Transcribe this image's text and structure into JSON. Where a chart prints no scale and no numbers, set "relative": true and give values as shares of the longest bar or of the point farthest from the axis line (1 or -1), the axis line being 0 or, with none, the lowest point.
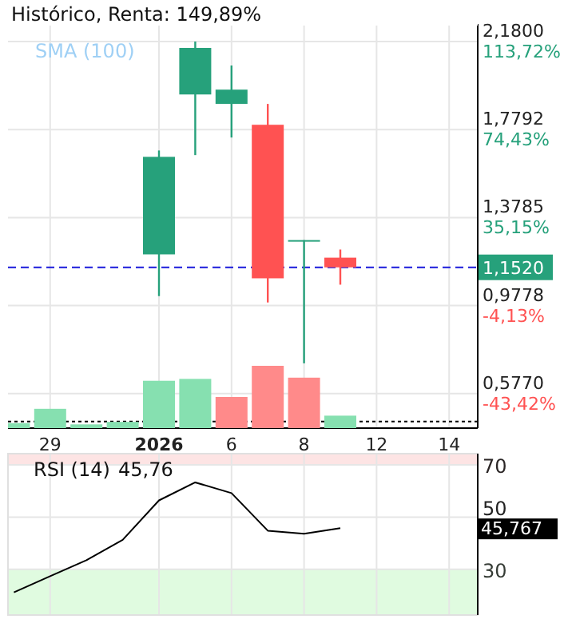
{
  "chart_data": [
    {
      "type": "candlestick",
      "title": "Histórico, Renta: 149,89%",
      "categories": [
        null,
        "29",
        null,
        null,
        "2026",
        null,
        "6",
        null,
        "8",
        null,
        "12",
        null,
        "14"
      ],
      "ohlc": [
        null,
        null,
        null,
        null,
        [
          1.211,
          1.684,
          1.021,
          1.655
        ],
        [
          1.939,
          2.18,
          1.663,
          2.151
        ],
        [
          1.896,
          2.071,
          1.743,
          1.961
        ],
        [
          1.801,
          1.896,
          0.992,
          1.102
        ],
        [
          1.276,
          1.276,
          0.715,
          1.276
        ],
        [
          1.196,
          1.233,
          1.073,
          1.152
        ],
        null,
        null,
        null
      ],
      "colors": [
        null,
        null,
        null,
        null,
        "#26a17b",
        "#26a17b",
        "#26a17b",
        "#ff5252",
        "#26a17b",
        "#ff5252",
        null,
        null,
        null
      ],
      "ylim": [
        0.42,
        2.26
      ],
      "yticks": [
        {
          "value": 0.577,
          "label": "0,5770"
        },
        {
          "value": 0.9778,
          "label": "0,9778"
        },
        {
          "value": 1.3785,
          "label": "1,3785"
        },
        {
          "value": 1.7792,
          "label": "1,7792"
        },
        {
          "value": 2.18,
          "label": "2,1800"
        }
      ],
      "y2lim": [
        -58.83,
        121.56
      ],
      "y2ticks": [
        {
          "value": -43.42,
          "label": "-43,42%"
        },
        {
          "value": -4.13,
          "label": "-4,13%"
        },
        {
          "value": 35.15,
          "label": "35,15%"
        },
        {
          "value": 74.43,
          "label": "74,43%"
        },
        {
          "value": 113.72,
          "label": "113,72%"
        }
      ],
      "ref_lines": [
        {
          "axis": "y",
          "value": 1.152,
          "label": "1,1520",
          "color": "#1a1adb",
          "line_style": "dashed"
        },
        {
          "axis": "y",
          "value": 0.45,
          "color": "#000000",
          "line_style": "dotted"
        }
      ],
      "annotations": [
        "SMA (100)"
      ],
      "grid": true
    },
    {
      "type": "bar",
      "relative": true,
      "categories": [
        null,
        null,
        null,
        null,
        null,
        null,
        null,
        null,
        null,
        null,
        null,
        null,
        null
      ],
      "values": [
        0.08,
        0.31,
        0.06,
        0.1,
        0.76,
        0.79,
        0.5,
        1,
        0.81,
        0.2,
        null,
        null,
        null
      ],
      "colors": [
        "#86e0b0",
        "#86e0b0",
        "#86e0b0",
        "#86e0b0",
        "#86e0b0",
        "#86e0b0",
        "#ff8a8a",
        "#ff8a8a",
        "#ff8a8a",
        "#86e0b0",
        null,
        null,
        null
      ],
      "tick_labels": false
    },
    {
      "type": "line",
      "title": "RSI (14)",
      "categories": [
        null,
        "29",
        null,
        null,
        "2026",
        null,
        "6",
        null,
        "8",
        null,
        "12",
        null,
        "14"
      ],
      "series": [
        {
          "color": "#000000",
          "values": [
            21.2,
            27.4,
            33.5,
            41.3,
            56.4,
            63.3,
            59.2,
            44.8,
            43.6,
            45.8,
            null,
            null,
            null
          ]
        }
      ],
      "ylim": [
        12.5,
        74.3
      ],
      "yticks": [
        30,
        50,
        70
      ],
      "bands": [
        {
          "axis": "y",
          "from": 70,
          "to": 74.3,
          "color": "#fde4e4"
        },
        {
          "axis": "y",
          "from": 12.5,
          "to": 30,
          "color": "#e0fbe0"
        }
      ],
      "annotations": [
        "45,76",
        "45,767"
      ],
      "tick_labels": "y",
      "grid": true
    }
  ]
}
